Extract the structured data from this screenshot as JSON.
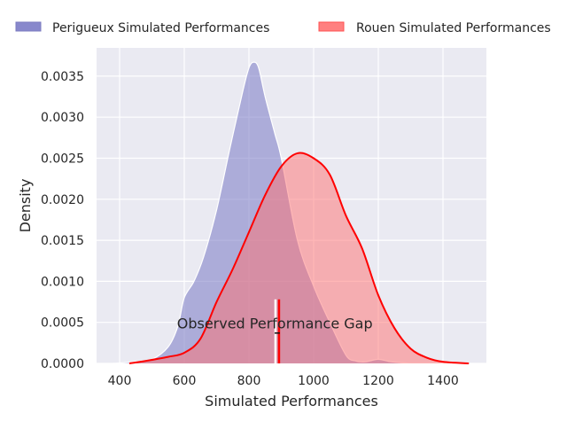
{
  "chart_data": {
    "type": "area",
    "title": "",
    "xlabel": "Simulated Performances",
    "ylabel": "Density",
    "xlim": [
      330,
      1535
    ],
    "ylim": [
      0,
      0.00385
    ],
    "xticks": [
      400,
      600,
      800,
      1000,
      1200,
      1400
    ],
    "yticks": [
      "0.0000",
      "0.0005",
      "0.0010",
      "0.0015",
      "0.0020",
      "0.0025",
      "0.0030",
      "0.0035"
    ],
    "grid": true,
    "legend_placement": "top, outside",
    "series": [
      {
        "name": "Perigueux Simulated Performances",
        "fill": "#7878c4",
        "line": "#ffffff",
        "x": [
          380,
          450,
          500,
          550,
          580,
          600,
          630,
          660,
          700,
          740,
          780,
          800,
          815,
          830,
          850,
          880,
          900,
          950,
          1000,
          1050,
          1100,
          1130,
          1160,
          1200,
          1240,
          1300
        ],
        "y": [
          0,
          2e-05,
          5e-05,
          0.0002,
          0.00045,
          0.0008,
          0.001,
          0.0013,
          0.00187,
          0.0026,
          0.0033,
          0.0036,
          0.00367,
          0.0036,
          0.00325,
          0.0028,
          0.0025,
          0.0015,
          0.00094,
          0.0005,
          0.0001,
          3e-05,
          2e-05,
          5e-05,
          2e-05,
          0
        ]
      },
      {
        "name": "Rouen Simulated Performances",
        "fill": "#ff7070",
        "line": "#ff0000",
        "x": [
          430,
          480,
          550,
          600,
          650,
          700,
          750,
          800,
          850,
          900,
          950,
          1000,
          1050,
          1100,
          1150,
          1200,
          1250,
          1300,
          1350,
          1400,
          1480
        ],
        "y": [
          0,
          3e-05,
          8e-05,
          0.00013,
          0.0003,
          0.00075,
          0.00115,
          0.0016,
          0.00205,
          0.0024,
          0.00256,
          0.0025,
          0.0023,
          0.0018,
          0.0014,
          0.00083,
          0.00043,
          0.00018,
          7e-05,
          2e-05,
          0
        ]
      }
    ],
    "vlines": [
      {
        "x": 882,
        "ymax": 0.00078,
        "color": "#ffffff"
      },
      {
        "x": 893,
        "ymax": 0.00078,
        "color": "#ff0000"
      }
    ],
    "annotation": {
      "text": "Observed Performance Gap",
      "x": 880,
      "y": 0.00045
    }
  }
}
